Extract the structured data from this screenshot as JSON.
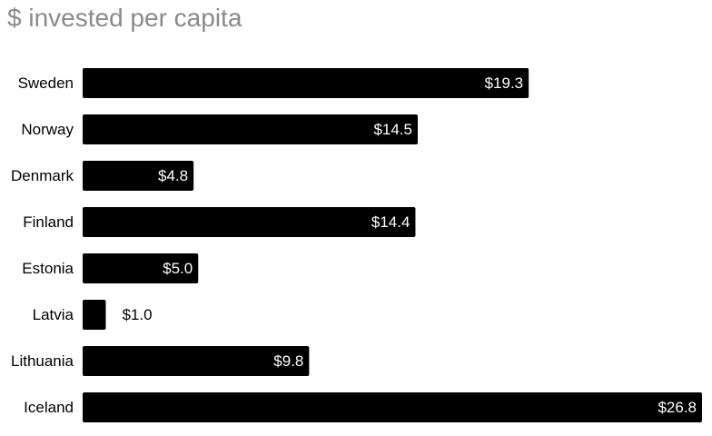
{
  "chart_data": {
    "type": "bar",
    "orientation": "horizontal",
    "title": "$ invested per capita",
    "categories": [
      "Sweden",
      "Norway",
      "Denmark",
      "Finland",
      "Estonia",
      "Latvia",
      "Lithuania",
      "Iceland"
    ],
    "values": [
      19.3,
      14.5,
      4.8,
      14.4,
      5.0,
      1.0,
      9.8,
      26.8
    ],
    "value_labels": [
      "$19.3",
      "$14.5",
      "$4.8",
      "$14.4",
      "$5.0",
      "$1.0",
      "$9.8",
      "$26.8"
    ],
    "xlabel": "",
    "ylabel": "",
    "xlim": [
      0,
      26.8
    ],
    "grid": false,
    "legend": "none",
    "colors": {
      "bar": "#000000",
      "label_inside": "#ffffff",
      "label_outside": "#000000",
      "category_label": "#000000",
      "title": "#8a8a8a"
    }
  }
}
